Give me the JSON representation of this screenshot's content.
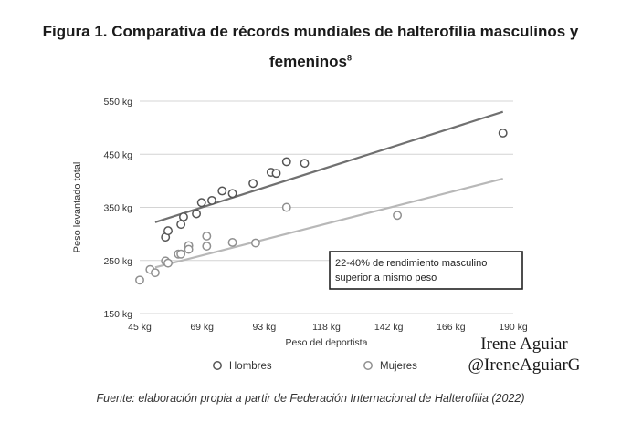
{
  "title": {
    "main": "Figura 1. Comparativa de récords mundiales de halterofilia masculinos y femeninos",
    "sup": "8"
  },
  "chart_data": {
    "type": "scatter",
    "xlabel": "Peso del deportista",
    "ylabel": "Peso levantado total",
    "x_ticks": [
      "45 kg",
      "69 kg",
      "93 kg",
      "118 kg",
      "142 kg",
      "166 kg",
      "190 kg"
    ],
    "y_ticks": [
      "550 kg",
      "450 kg",
      "350 kg",
      "250 kg",
      "150 kg"
    ],
    "xlim": [
      45,
      190
    ],
    "ylim": [
      150,
      550
    ],
    "grid": "horizontal",
    "legend_position": "bottom",
    "series": [
      {
        "name": "Hombres",
        "color": "#555555",
        "points": [
          [
            55,
            294
          ],
          [
            56,
            306
          ],
          [
            61,
            318
          ],
          [
            62,
            332
          ],
          [
            67,
            338
          ],
          [
            69,
            359
          ],
          [
            73,
            363
          ],
          [
            77,
            381
          ],
          [
            81,
            376
          ],
          [
            89,
            395
          ],
          [
            96,
            416
          ],
          [
            98,
            414
          ],
          [
            102,
            436
          ],
          [
            109,
            433
          ],
          [
            186,
            490
          ]
        ]
      },
      {
        "name": "Mujeres",
        "color": "#909090",
        "points": [
          [
            45,
            213
          ],
          [
            49,
            233
          ],
          [
            51,
            227
          ],
          [
            55,
            249
          ],
          [
            56,
            245
          ],
          [
            60,
            262
          ],
          [
            61,
            262
          ],
          [
            64,
            278
          ],
          [
            64,
            271
          ],
          [
            71,
            296
          ],
          [
            71,
            277
          ],
          [
            81,
            284
          ],
          [
            90,
            283
          ],
          [
            102,
            350
          ],
          [
            145,
            335
          ]
        ]
      }
    ],
    "trendlines": [
      {
        "series": "Hombres",
        "x": [
          51,
          186
        ],
        "y": [
          322,
          530
        ],
        "color": "#707070"
      },
      {
        "series": "Mujeres",
        "x": [
          51,
          186
        ],
        "y": [
          237,
          404
        ],
        "color": "#b8b8b8"
      }
    ],
    "annotation": "22-40% de rendimiento masculino superior a mismo peso"
  },
  "watermark": [
    "Irene Aguiar",
    "@IreneAguiarG"
  ],
  "source": "Fuente: elaboración propia a partir de Federación Internacional de Halterofilia (2022)"
}
